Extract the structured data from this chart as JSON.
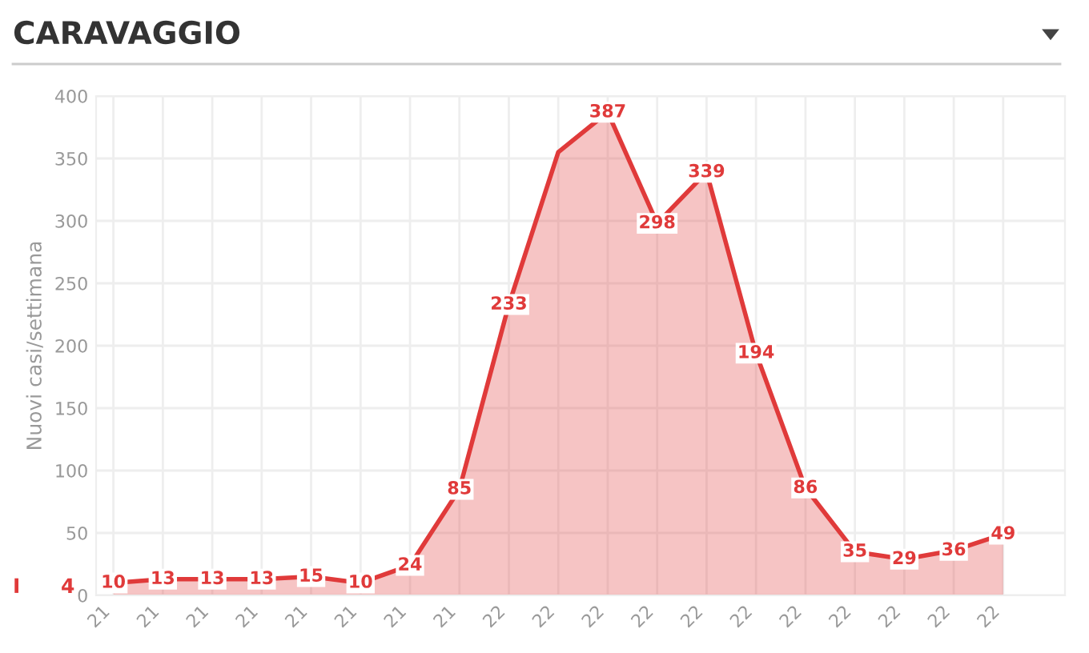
{
  "chart_data": {
    "type": "area",
    "title": "CARAVAGGIO",
    "ylabel": "Nuovi casi/settimana",
    "categories": [
      "21",
      "21",
      "21",
      "21",
      "21",
      "21",
      "21",
      "21",
      "22",
      "22",
      "22",
      "22",
      "22",
      "22",
      "22",
      "22",
      "22",
      "22",
      "22"
    ],
    "series": [
      {
        "color": "#e03a3a",
        "values": [
          10,
          13,
          13,
          13,
          15,
          10,
          24,
          85,
          233,
          355,
          387,
          298,
          339,
          194,
          86,
          35,
          29,
          36,
          49
        ],
        "value_labels": [
          "10",
          "13",
          "13",
          "13",
          "15",
          "10",
          "24",
          "85",
          "233",
          null,
          "387",
          "298",
          "339",
          "194",
          "86",
          "35",
          "29",
          "36",
          "49"
        ]
      }
    ],
    "ylim": [
      0,
      400
    ],
    "yticks": [
      0,
      50,
      100,
      150,
      200,
      250,
      300,
      350,
      400
    ],
    "grid": true,
    "line_style": "solid",
    "annotations": [
      "I",
      "4"
    ]
  }
}
